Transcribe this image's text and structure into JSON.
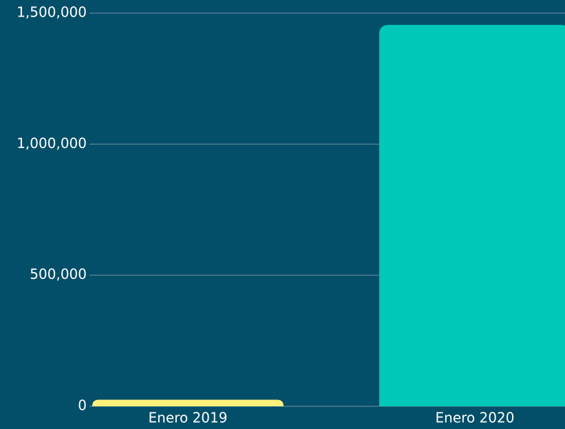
{
  "chart_data": {
    "type": "bar",
    "categories": [
      "Enero 2019",
      "Enero 2020"
    ],
    "values": [
      25000,
      1455000
    ],
    "colors": [
      "#fff27a",
      "#00c8b8"
    ],
    "ylim": [
      0,
      1500000
    ],
    "yticks": [
      0,
      {
        "value": 500000,
        "label": "500,000"
      },
      {
        "value": 1000000,
        "label": "1,000,000"
      },
      {
        "value": 1500000,
        "label": "1,500,000"
      }
    ],
    "grid": true
  }
}
